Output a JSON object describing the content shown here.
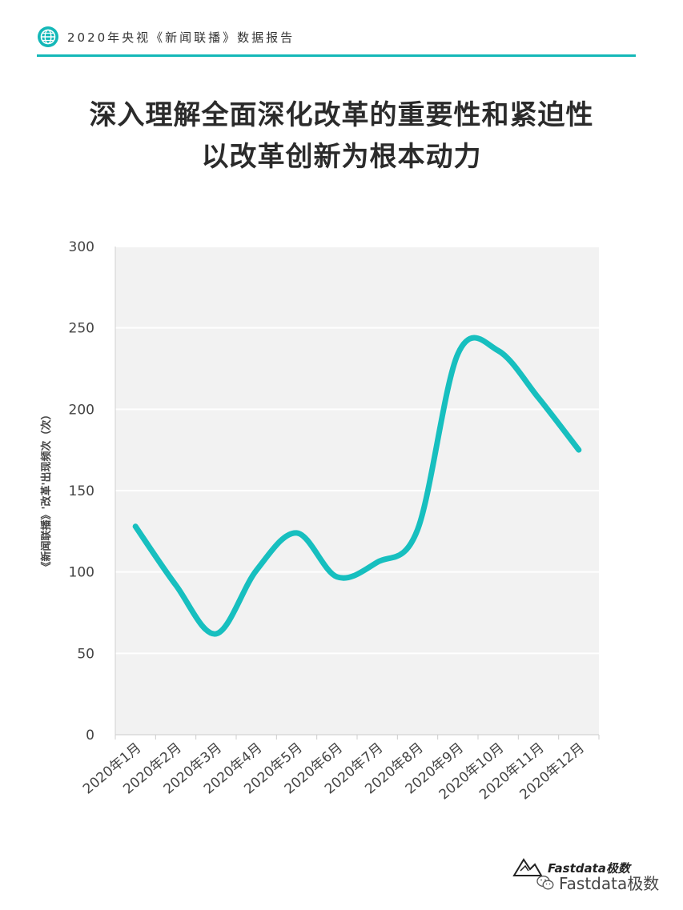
{
  "header": {
    "text": "2020年央视《新闻联播》数据报告",
    "icon": "globe-icon",
    "accent": "#14b8b8"
  },
  "title": {
    "line1": "深入理解全面深化改革的重要性和紧迫性",
    "line2": "以改革创新为根本动力"
  },
  "chart_data": {
    "type": "line",
    "categories": [
      "2020年1月",
      "2020年2月",
      "2020年3月",
      "2020年4月",
      "2020年5月",
      "2020年6月",
      "2020年7月",
      "2020年8月",
      "2020年9月",
      "2020年10月",
      "2020年11月",
      "2020年12月"
    ],
    "series": [
      {
        "values": [
          128,
          92,
          62,
          101,
          124,
          97,
          106,
          126,
          234,
          236,
          207,
          175
        ],
        "color": "#17bfbf"
      }
    ],
    "ylabel": "《新闻联播》'改革'出现频次（次）",
    "xlabel": "",
    "ylim": [
      0,
      300
    ],
    "yticks": [
      0,
      50,
      100,
      150,
      200,
      250,
      300
    ],
    "grid": true,
    "plot_background": "#f2f2f2"
  },
  "footer": {
    "logo_text": "Fastdata极数",
    "watermark_text": "Fastdata极数",
    "watermark_icon": "wechat-icon"
  }
}
